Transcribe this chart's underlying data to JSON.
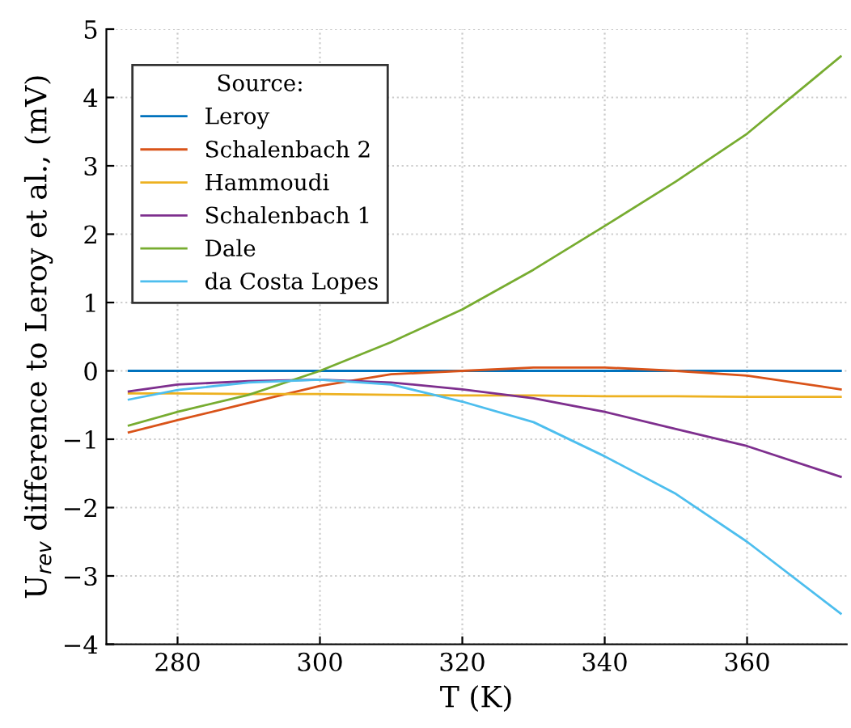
{
  "chart_data": {
    "type": "line",
    "xlabel": "T (K)",
    "ylabel": "U$_{rev}$ difference to Leroy et al., (mV)",
    "legend_title": "Source:",
    "legend": "top left",
    "grid": true,
    "line_style": "solid",
    "marker": "none",
    "x": [
      273.15,
      280,
      290,
      300,
      310,
      320,
      330,
      340,
      350,
      360,
      373.15
    ],
    "xlim": [
      270,
      374
    ],
    "xticks": [
      280,
      300,
      320,
      340,
      360
    ],
    "ylim": [
      -4,
      5
    ],
    "yticks": [
      -4,
      -3,
      -2,
      -1,
      0,
      1,
      2,
      3,
      4,
      5
    ],
    "series": [
      {
        "name": "Leroy",
        "color": "#0072bd",
        "values": [
          0,
          0,
          0,
          0,
          0,
          0,
          0,
          0,
          0,
          0,
          0
        ]
      },
      {
        "name": "Schalenbach 2",
        "color": "#d95319",
        "values": [
          -0.9,
          -0.72,
          -0.47,
          -0.22,
          -0.05,
          0.0,
          0.05,
          0.05,
          0.0,
          -0.07,
          -0.27
        ]
      },
      {
        "name": "Hammoudi",
        "color": "#edb120",
        "values": [
          -0.33,
          -0.33,
          -0.34,
          -0.34,
          -0.35,
          -0.36,
          -0.36,
          -0.37,
          -0.37,
          -0.38,
          -0.38
        ]
      },
      {
        "name": "Schalenbach 1",
        "color": "#7e2f8e",
        "values": [
          -0.3,
          -0.2,
          -0.15,
          -0.13,
          -0.17,
          -0.27,
          -0.4,
          -0.6,
          -0.85,
          -1.1,
          -1.55
        ]
      },
      {
        "name": "Dale",
        "color": "#77ac30",
        "values": [
          -0.8,
          -0.6,
          -0.35,
          0.0,
          0.42,
          0.9,
          1.48,
          2.12,
          2.77,
          3.47,
          4.6
        ]
      },
      {
        "name": "da Costa Lopes",
        "color": "#4dbeee",
        "values": [
          -0.42,
          -0.28,
          -0.17,
          -0.13,
          -0.2,
          -0.45,
          -0.75,
          -1.25,
          -1.8,
          -2.5,
          -3.55
        ]
      }
    ]
  }
}
